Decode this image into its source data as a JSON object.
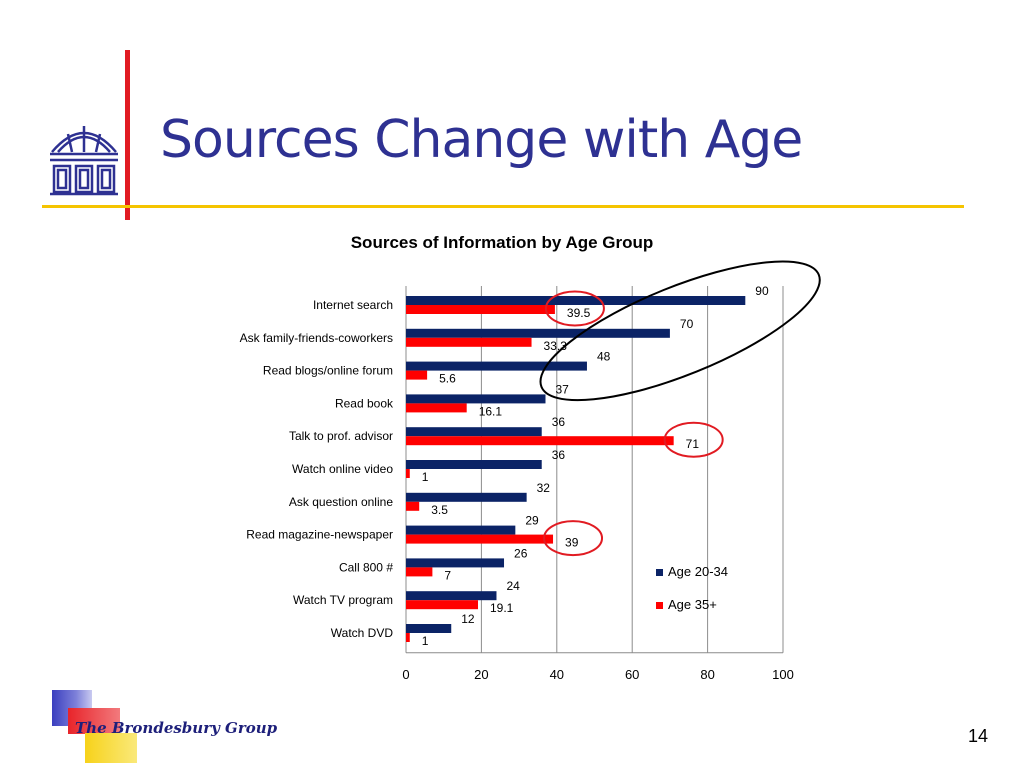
{
  "slide": {
    "title": "Sources Change with Age",
    "brand": "The Brondesbury Group",
    "page_number": "14"
  },
  "colors": {
    "title": "#2e3192",
    "accent_red": "#e11b22",
    "accent_gold": "#f5c400",
    "series_dark": "#0b2366",
    "series_red": "#ff0000",
    "highlight_circle": "#e11b22",
    "outline_ellipse": "#000000"
  },
  "icons": {
    "logo": "building-icon"
  },
  "chart_data": {
    "type": "bar",
    "orientation": "horizontal",
    "title": "Sources of Information by Age Group",
    "categories": [
      "Internet search",
      "Ask family-friends-coworkers",
      "Read blogs/online forum",
      "Read book",
      "Talk to prof. advisor",
      "Watch online video",
      "Ask question online",
      "Read magazine-newspaper",
      "Call 800 #",
      "Watch TV program",
      "Watch DVD"
    ],
    "series": [
      {
        "name": "Age 20-34",
        "values": [
          90,
          70,
          48,
          37,
          36,
          36,
          32,
          29,
          26,
          24,
          12
        ],
        "labels": [
          "90",
          "70",
          "48",
          "37",
          "36",
          "36",
          "32",
          "29",
          "26",
          "24",
          "12"
        ]
      },
      {
        "name": "Age 35+",
        "values": [
          39.5,
          33.3,
          5.6,
          16.1,
          71,
          1,
          3.5,
          39,
          7,
          19.1,
          1
        ],
        "labels": [
          "39.5",
          "33.3",
          "5.6",
          "16.1",
          "71",
          "1",
          "3.5",
          "39",
          "7",
          "19.1",
          "1"
        ]
      }
    ],
    "xlim": [
      0,
      100
    ],
    "xticks": [
      0,
      20,
      40,
      60,
      80,
      100
    ],
    "grid": true,
    "legend": "right",
    "annotations": {
      "highlighted_series_index": 1,
      "circled_red_categories": [
        0,
        4,
        7
      ],
      "ellipse_dark_categories": [
        0,
        1,
        2
      ]
    }
  }
}
